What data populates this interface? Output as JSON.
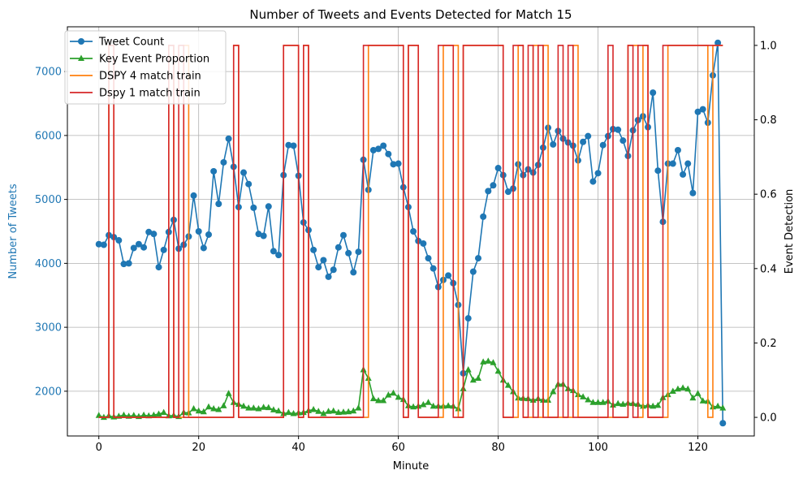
{
  "chart_data": {
    "type": "line",
    "title": "Number of Tweets and Events Detected for Match 15",
    "xlabel": "Minute",
    "ylabel_left": "Number of Tweets",
    "ylabel_right": "Event Detection",
    "xlim": [
      -6.3,
      131.3
    ],
    "ylim_left": [
      1300,
      7700
    ],
    "ylim_right": [
      -0.05,
      1.05
    ],
    "x_ticks": [
      0,
      20,
      40,
      60,
      80,
      100,
      120
    ],
    "y_left_ticks": [
      2000,
      3000,
      4000,
      5000,
      6000,
      7000
    ],
    "y_right_ticks": [
      0.0,
      0.2,
      0.4,
      0.6,
      0.8,
      1.0
    ],
    "grid": true,
    "legend_position": "top-left",
    "colors": {
      "tweet": "#1f77b4",
      "key_event": "#2ca02c",
      "dspy4": "#ff7f0e",
      "dspy1": "#d62728"
    },
    "series": [
      {
        "name": "Tweet Count",
        "axis": "left",
        "style": "line-circle",
        "values": [
          4300,
          4290,
          4440,
          4410,
          4360,
          3990,
          4000,
          4240,
          4300,
          4250,
          4490,
          4460,
          3940,
          4210,
          4490,
          4680,
          4230,
          4290,
          4420,
          5060,
          4500,
          4240,
          4450,
          5440,
          4930,
          5580,
          5950,
          5510,
          4880,
          5420,
          5240,
          4870,
          4460,
          4430,
          4890,
          4190,
          4130,
          5380,
          5850,
          5840,
          5370,
          4640,
          4520,
          4210,
          3940,
          4050,
          3790,
          3900,
          4250,
          4440,
          4160,
          3860,
          4180,
          5620,
          5150,
          5770,
          5790,
          5840,
          5710,
          5550,
          5560,
          5190,
          4880,
          4500,
          4350,
          4310,
          4080,
          3920,
          3630,
          3740,
          3810,
          3690,
          3350,
          2280,
          3140,
          3870,
          4080,
          4730,
          5130,
          5220,
          5490,
          5380,
          5120,
          5170,
          5550,
          5380,
          5470,
          5420,
          5540,
          5810,
          6120,
          5860,
          6070,
          5950,
          5890,
          5840,
          5610,
          5900,
          5990,
          5280,
          5410,
          5850,
          5990,
          6100,
          6090,
          5920,
          5680,
          6080,
          6240,
          6300,
          6130,
          6670,
          5450,
          4650,
          5560,
          5560,
          5770,
          5390,
          5560,
          5100,
          6370,
          6410,
          6200,
          6940,
          7450,
          1500
        ]
      },
      {
        "name": "Key Event Proportion",
        "axis": "right",
        "style": "line-triangle",
        "values": [
          0.005,
          0.0,
          0.004,
          0.001,
          0.003,
          0.006,
          0.003,
          0.005,
          0.002,
          0.006,
          0.004,
          0.006,
          0.009,
          0.013,
          0.004,
          0.005,
          0.002,
          0.013,
          0.012,
          0.023,
          0.017,
          0.015,
          0.028,
          0.023,
          0.021,
          0.031,
          0.064,
          0.04,
          0.035,
          0.03,
          0.025,
          0.025,
          0.023,
          0.027,
          0.026,
          0.02,
          0.017,
          0.01,
          0.013,
          0.01,
          0.012,
          0.013,
          0.018,
          0.021,
          0.016,
          0.01,
          0.016,
          0.017,
          0.013,
          0.014,
          0.015,
          0.017,
          0.025,
          0.128,
          0.105,
          0.05,
          0.045,
          0.045,
          0.06,
          0.065,
          0.054,
          0.048,
          0.031,
          0.028,
          0.03,
          0.034,
          0.04,
          0.03,
          0.03,
          0.03,
          0.031,
          0.03,
          0.023,
          0.077,
          0.128,
          0.1,
          0.105,
          0.149,
          0.151,
          0.147,
          0.124,
          0.1,
          0.086,
          0.069,
          0.052,
          0.051,
          0.05,
          0.046,
          0.05,
          0.046,
          0.046,
          0.069,
          0.089,
          0.089,
          0.077,
          0.072,
          0.061,
          0.055,
          0.047,
          0.04,
          0.04,
          0.04,
          0.043,
          0.033,
          0.037,
          0.035,
          0.038,
          0.037,
          0.035,
          0.03,
          0.032,
          0.03,
          0.032,
          0.053,
          0.061,
          0.07,
          0.076,
          0.079,
          0.076,
          0.052,
          0.064,
          0.044,
          0.043,
          0.028,
          0.03,
          0.025
        ]
      },
      {
        "name": "DSPY 4 match train",
        "axis": "right",
        "style": "step",
        "values": [
          0,
          0,
          1,
          0,
          0,
          0,
          0,
          0,
          0,
          0,
          0,
          0,
          0,
          0,
          1,
          0,
          0,
          1,
          0,
          0,
          0,
          0,
          0,
          0,
          0,
          0,
          0,
          1,
          0,
          0,
          0,
          0,
          0,
          0,
          0,
          0,
          0,
          1,
          1,
          1,
          0,
          1,
          0,
          0,
          0,
          0,
          0,
          0,
          0,
          0,
          0,
          0,
          0,
          0,
          1,
          1,
          1,
          1,
          1,
          1,
          1,
          0,
          1,
          1,
          0,
          0,
          0,
          0,
          0,
          1,
          1,
          1,
          0,
          1,
          1,
          1,
          1,
          1,
          1,
          1,
          1,
          0,
          0,
          0,
          1,
          0,
          0,
          1,
          0,
          1,
          0,
          0,
          0,
          0,
          0,
          1,
          0,
          0,
          0,
          0,
          0,
          0,
          0,
          0,
          0,
          0,
          1,
          1,
          0,
          1,
          0,
          0,
          0,
          0,
          1,
          1,
          1,
          1,
          1,
          1,
          1,
          1,
          0,
          1,
          1,
          1
        ]
      },
      {
        "name": "Dspy 1 match train",
        "axis": "right",
        "style": "step",
        "values": [
          0,
          0,
          1,
          0,
          0,
          0,
          0,
          0,
          0,
          0,
          0,
          0,
          0,
          0,
          1,
          0,
          1,
          0,
          0,
          0,
          0,
          0,
          0,
          0,
          0,
          0,
          0,
          1,
          0,
          0,
          0,
          0,
          0,
          0,
          0,
          0,
          0,
          1,
          1,
          1,
          0,
          1,
          0,
          0,
          0,
          0,
          0,
          0,
          0,
          0,
          0,
          0,
          0,
          1,
          1,
          1,
          1,
          1,
          1,
          1,
          1,
          0,
          1,
          1,
          0,
          0,
          0,
          0,
          1,
          1,
          1,
          0,
          0,
          1,
          1,
          1,
          1,
          1,
          1,
          1,
          1,
          0,
          0,
          1,
          1,
          0,
          1,
          0,
          1,
          0,
          0,
          0,
          1,
          0,
          1,
          0,
          0,
          0,
          0,
          0,
          0,
          0,
          1,
          0,
          0,
          0,
          1,
          0,
          1,
          1,
          0,
          0,
          0,
          1,
          1,
          1,
          1,
          1,
          1,
          1,
          1,
          1,
          1,
          1,
          1,
          1
        ]
      }
    ]
  }
}
